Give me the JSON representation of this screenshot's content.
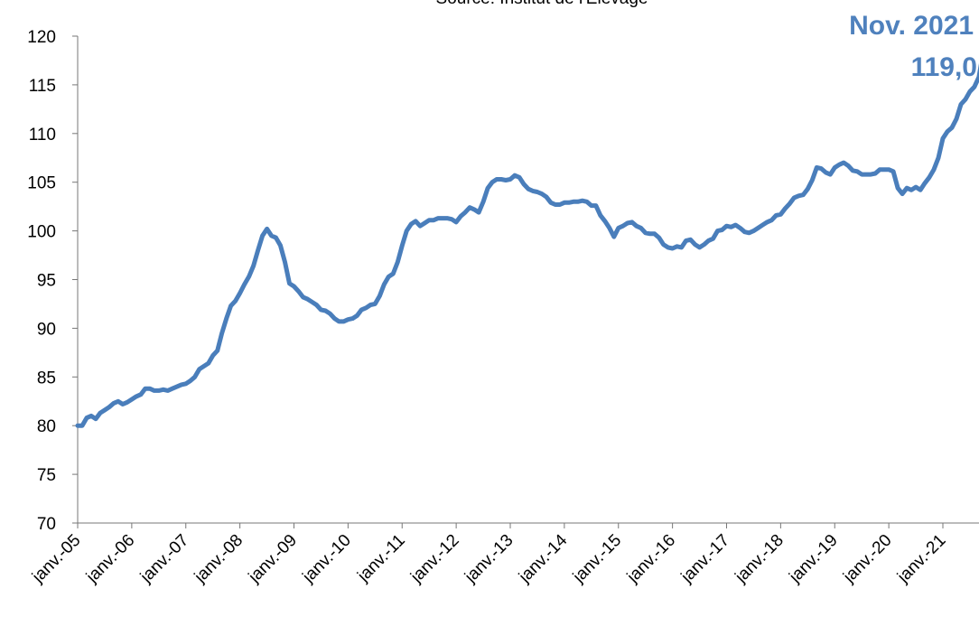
{
  "chart_data": {
    "type": "line",
    "subtitle": "Source: Institut de l'Elevage",
    "annotation": [
      "Nov. 2021",
      "119,0"
    ],
    "categories": [
      "janv.-05",
      null,
      null,
      null,
      null,
      null,
      null,
      null,
      null,
      null,
      null,
      null,
      "janv.-06",
      null,
      null,
      null,
      null,
      null,
      null,
      null,
      null,
      null,
      null,
      null,
      "janv.-07",
      null,
      null,
      null,
      null,
      null,
      null,
      null,
      null,
      null,
      null,
      null,
      "janv.-08",
      null,
      null,
      null,
      null,
      null,
      null,
      null,
      null,
      null,
      null,
      null,
      "janv.-09",
      null,
      null,
      null,
      null,
      null,
      null,
      null,
      null,
      null,
      null,
      null,
      "janv.-10",
      null,
      null,
      null,
      null,
      null,
      null,
      null,
      null,
      null,
      null,
      null,
      "janv.-11",
      null,
      null,
      null,
      null,
      null,
      null,
      null,
      null,
      null,
      null,
      null,
      "janv.-12",
      null,
      null,
      null,
      null,
      null,
      null,
      null,
      null,
      null,
      null,
      null,
      "janv.-13",
      null,
      null,
      null,
      null,
      null,
      null,
      null,
      null,
      null,
      null,
      null,
      "janv.-14",
      null,
      null,
      null,
      null,
      null,
      null,
      null,
      null,
      null,
      null,
      null,
      "janv.-15",
      null,
      null,
      null,
      null,
      null,
      null,
      null,
      null,
      null,
      null,
      null,
      "janv.-16",
      null,
      null,
      null,
      null,
      null,
      null,
      null,
      null,
      null,
      null,
      null,
      "janv.-17",
      null,
      null,
      null,
      null,
      null,
      null,
      null,
      null,
      null,
      null,
      null,
      "janv.-18",
      null,
      null,
      null,
      null,
      null,
      null,
      null,
      null,
      null,
      null,
      null,
      "janv.-19",
      null,
      null,
      null,
      null,
      null,
      null,
      null,
      null,
      null,
      null,
      null,
      "janv.-20",
      null,
      null,
      null,
      null,
      null,
      null,
      null,
      null,
      null,
      null,
      null,
      "janv.-21",
      null,
      null,
      null,
      null,
      null,
      null,
      null,
      null,
      null,
      null
    ],
    "series": [
      {
        "color": "#4a7ebb",
        "values": [
          80.0,
          80.0,
          80.8,
          81.0,
          80.7,
          81.3,
          81.6,
          81.9,
          82.3,
          82.5,
          82.2,
          82.4,
          82.7,
          83.0,
          83.2,
          83.8,
          83.8,
          83.6,
          83.6,
          83.7,
          83.6,
          83.8,
          84.0,
          84.2,
          84.3,
          84.6,
          85.0,
          85.8,
          86.1,
          86.4,
          87.2,
          87.7,
          89.5,
          91.0,
          92.3,
          92.8,
          93.6,
          94.5,
          95.3,
          96.4,
          98.0,
          99.5,
          100.2,
          99.5,
          99.3,
          98.5,
          96.8,
          94.6,
          94.3,
          93.8,
          93.2,
          93.0,
          92.7,
          92.4,
          91.9,
          91.8,
          91.5,
          91.0,
          90.7,
          90.7,
          90.9,
          91.0,
          91.3,
          91.9,
          92.1,
          92.4,
          92.5,
          93.3,
          94.5,
          95.3,
          95.6,
          96.8,
          98.5,
          100.0,
          100.7,
          101.0,
          100.5,
          100.8,
          101.1,
          101.1,
          101.3,
          101.3,
          101.3,
          101.2,
          100.9,
          101.5,
          101.9,
          102.4,
          102.2,
          101.9,
          103.0,
          104.4,
          105.0,
          105.3,
          105.3,
          105.2,
          105.3,
          105.7,
          105.5,
          104.8,
          104.3,
          104.1,
          104.0,
          103.8,
          103.5,
          102.9,
          102.7,
          102.7,
          102.9,
          102.9,
          103.0,
          103.0,
          103.1,
          103.0,
          102.6,
          102.6,
          101.6,
          101.0,
          100.3,
          99.4,
          100.3,
          100.5,
          100.8,
          100.9,
          100.5,
          100.3,
          99.8,
          99.7,
          99.7,
          99.3,
          98.6,
          98.3,
          98.2,
          98.4,
          98.3,
          99.0,
          99.1,
          98.6,
          98.3,
          98.6,
          99.0,
          99.2,
          100.0,
          100.1,
          100.5,
          100.4,
          100.6,
          100.3,
          99.9,
          99.8,
          100.0,
          100.3,
          100.6,
          100.9,
          101.1,
          101.6,
          101.7,
          102.3,
          102.8,
          103.4,
          103.6,
          103.7,
          104.3,
          105.2,
          106.5,
          106.4,
          106.0,
          105.8,
          106.5,
          106.8,
          107.0,
          106.7,
          106.2,
          106.1,
          105.8,
          105.8,
          105.8,
          105.9,
          106.3,
          106.3,
          106.3,
          106.1,
          104.4,
          103.8,
          104.4,
          104.2,
          104.5,
          104.2,
          104.9,
          105.5,
          106.3,
          107.5,
          109.5,
          110.2,
          110.6,
          111.5,
          113.0,
          113.5,
          114.3,
          114.8,
          115.8,
          118.5,
          119.0
        ]
      }
    ],
    "ylim": [
      70,
      120
    ],
    "yticks": [
      70,
      75,
      80,
      85,
      90,
      95,
      100,
      105,
      110,
      115,
      120
    ],
    "annotation_color": "#4f81bd"
  }
}
